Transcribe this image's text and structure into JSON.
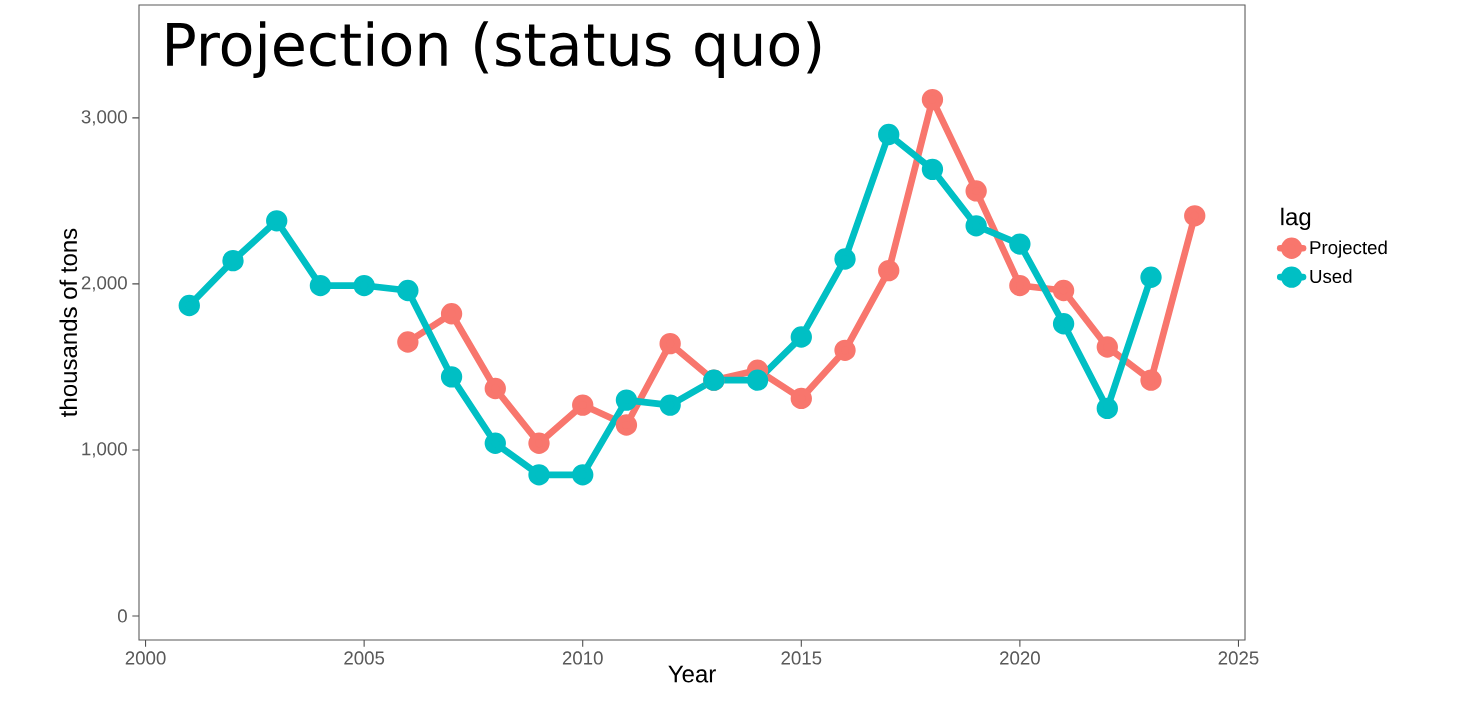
{
  "chart_data": {
    "type": "line",
    "title": "Projection (status quo)",
    "xlabel": "Year",
    "ylabel": "thousands of tons",
    "legend_title": "lag",
    "legend": "right",
    "marker": "circle",
    "line_style": "solid",
    "xlim": [
      1999.85,
      2025.15
    ],
    "xticks": [
      2000,
      2005,
      2010,
      2015,
      2020,
      2025
    ],
    "ylim": [
      -145,
      3680
    ],
    "yticks": [
      0,
      {
        "value": 1000,
        "label": "1,000"
      },
      {
        "value": 2000,
        "label": "2,000"
      },
      {
        "value": 3000,
        "label": "3,000"
      }
    ],
    "series": [
      {
        "name": "Projected",
        "color": "#f8766d",
        "x": [
          2006,
          2007,
          2008,
          2009,
          2010,
          2011,
          2012,
          2013,
          2014,
          2015,
          2016,
          2017,
          2018,
          2019,
          2020,
          2021,
          2022,
          2023,
          2024
        ],
        "values": [
          1650,
          1820,
          1370,
          1040,
          1270,
          1150,
          1640,
          1420,
          1480,
          1310,
          1600,
          2080,
          3110,
          2560,
          1990,
          1960,
          1620,
          1420,
          2410
        ]
      },
      {
        "name": "Used",
        "color": "#00bfc4",
        "x": [
          2001,
          2002,
          2003,
          2004,
          2005,
          2006,
          2007,
          2008,
          2009,
          2010,
          2011,
          2012,
          2013,
          2014,
          2015,
          2016,
          2017,
          2018,
          2019,
          2020,
          2021,
          2022,
          2023
        ],
        "values": [
          1870,
          2140,
          2380,
          1990,
          1990,
          1960,
          1440,
          1040,
          850,
          850,
          1300,
          1270,
          1420,
          1420,
          1680,
          2150,
          2900,
          2690,
          2350,
          2240,
          1760,
          1250,
          2040
        ]
      }
    ]
  }
}
